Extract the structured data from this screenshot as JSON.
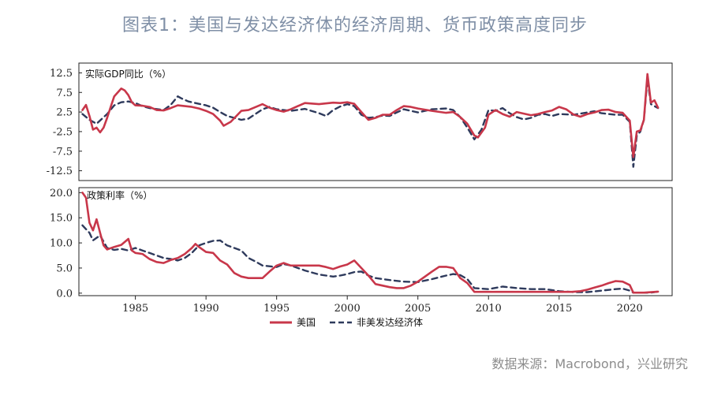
{
  "title": "图表1：美国与发达经济体的经济周期、货币政策高度同步",
  "source": "数据来源：Macrobond，兴业研究",
  "colors": {
    "us": "#c8374a",
    "adv": "#2e3a5c",
    "axis": "#222222"
  },
  "legend": {
    "us": "美国",
    "adv": "非美发达经济体"
  },
  "chart_data": [
    {
      "type": "line",
      "title": "实际GDP同比（%）",
      "xlim": [
        1981.0,
        2023.0
      ],
      "ylim": [
        -15,
        15
      ],
      "yticks": [
        12.5,
        7.5,
        2.5,
        -2.5,
        -7.5,
        -12.5
      ],
      "yticklabels": [
        "12.5",
        "7.5",
        "2.5",
        "-2.5",
        "-7.5",
        "-12.5"
      ],
      "grid": false,
      "series": [
        {
          "name": "美国",
          "x": [
            1981.25,
            1981.5,
            1981.75,
            1982.0,
            1982.25,
            1982.5,
            1982.75,
            1983.0,
            1983.25,
            1983.5,
            1984.0,
            1984.25,
            1984.5,
            1984.75,
            1985.0,
            1985.5,
            1986.0,
            1986.5,
            1987.0,
            1987.5,
            1988.0,
            1988.5,
            1989.0,
            1989.5,
            1990.0,
            1990.5,
            1991.0,
            1991.25,
            1991.75,
            1992.5,
            1993.0,
            1994.0,
            1994.5,
            1995.0,
            1995.5,
            1996.0,
            1996.5,
            1997.0,
            1998.0,
            1999.0,
            1999.5,
            2000.0,
            2000.5,
            2001.0,
            2001.5,
            2002.0,
            2002.5,
            2003.0,
            2003.5,
            2004.0,
            2004.5,
            2005.0,
            2006.0,
            2007.0,
            2007.5,
            2008.0,
            2008.5,
            2009.0,
            2009.25,
            2009.75,
            2010.0,
            2010.5,
            2011.0,
            2011.5,
            2012.0,
            2012.5,
            2013.0,
            2013.5,
            2014.0,
            2014.5,
            2015.0,
            2015.5,
            2016.0,
            2016.5,
            2017.0,
            2017.5,
            2018.0,
            2018.5,
            2019.0,
            2019.5,
            2020.0,
            2020.25,
            2020.5,
            2020.75,
            2021.0,
            2021.25,
            2021.5,
            2021.75,
            2022.0
          ],
          "values": [
            3.0,
            4.3,
            1.5,
            -2.0,
            -1.5,
            -2.7,
            -1.5,
            1.0,
            3.8,
            6.5,
            8.5,
            8.0,
            6.8,
            5.0,
            4.2,
            4.1,
            3.8,
            3.0,
            2.9,
            3.5,
            4.2,
            4.0,
            3.8,
            3.4,
            2.8,
            2.0,
            0.3,
            -1.0,
            0.0,
            2.8,
            3.0,
            4.5,
            3.6,
            3.0,
            2.6,
            3.2,
            4.0,
            4.8,
            4.5,
            4.9,
            4.8,
            5.0,
            4.6,
            2.5,
            0.5,
            1.0,
            1.8,
            1.8,
            3.0,
            4.0,
            3.8,
            3.4,
            2.8,
            2.3,
            2.5,
            1.2,
            -0.5,
            -3.5,
            -4.0,
            -1.5,
            1.8,
            3.0,
            2.0,
            1.3,
            2.5,
            2.1,
            1.7,
            2.0,
            2.5,
            2.9,
            3.8,
            3.2,
            1.9,
            1.3,
            2.0,
            2.4,
            3.0,
            3.1,
            2.5,
            2.3,
            0.3,
            -9.0,
            -2.5,
            -2.2,
            0.5,
            12.2,
            4.9,
            5.5,
            3.6
          ]
        },
        {
          "name": "非美发达经济体",
          "x": [
            1981.25,
            1981.75,
            1982.25,
            1983.0,
            1983.5,
            1984.0,
            1984.5,
            1985.0,
            1985.5,
            1986.0,
            1987.0,
            1987.5,
            1988.0,
            1988.25,
            1988.75,
            1989.5,
            1990.0,
            1990.5,
            1991.0,
            1991.5,
            1992.0,
            1992.5,
            1993.0,
            1993.5,
            1994.0,
            1994.5,
            1995.0,
            1995.5,
            1996.0,
            1997.0,
            1998.0,
            1998.5,
            1999.0,
            1999.5,
            2000.0,
            2000.5,
            2001.0,
            2001.5,
            2002.0,
            2002.5,
            2003.0,
            2003.5,
            2004.0,
            2004.5,
            2005.0,
            2006.0,
            2007.0,
            2007.5,
            2008.0,
            2008.5,
            2009.0,
            2009.5,
            2010.0,
            2010.5,
            2011.0,
            2011.5,
            2012.0,
            2012.5,
            2013.0,
            2013.5,
            2014.0,
            2014.5,
            2015.0,
            2016.0,
            2017.0,
            2017.5,
            2018.0,
            2018.5,
            2019.0,
            2019.5,
            2020.0,
            2020.25,
            2020.5,
            2020.75,
            2021.0,
            2021.25,
            2021.5,
            2021.75,
            2022.0
          ],
          "values": [
            2.0,
            0.5,
            -0.5,
            2.0,
            4.2,
            5.0,
            5.2,
            4.8,
            4.0,
            3.5,
            3.0,
            4.3,
            6.5,
            6.0,
            5.2,
            4.6,
            4.2,
            3.6,
            2.5,
            1.5,
            1.0,
            0.5,
            0.8,
            2.0,
            3.2,
            3.8,
            3.2,
            3.0,
            2.8,
            3.3,
            2.2,
            1.5,
            3.0,
            3.9,
            4.5,
            4.0,
            1.8,
            1.0,
            1.2,
            1.6,
            1.5,
            2.4,
            3.2,
            2.8,
            2.4,
            3.2,
            3.4,
            3.0,
            1.2,
            -1.5,
            -4.5,
            -2.0,
            3.0,
            2.8,
            3.5,
            2.2,
            1.2,
            0.6,
            1.0,
            1.8,
            2.0,
            1.5,
            2.0,
            1.8,
            2.4,
            2.7,
            2.2,
            2.0,
            1.8,
            1.8,
            0.0,
            -11.5,
            -3.5,
            -2.5,
            0.5,
            11.0,
            4.5,
            4.0,
            3.5
          ]
        }
      ]
    },
    {
      "type": "line",
      "title": "政策利率（%）",
      "xlim": [
        1981.0,
        2023.0
      ],
      "ylim": [
        -0.5,
        21.0
      ],
      "yticks": [
        20,
        15,
        10,
        5,
        0
      ],
      "yticklabels": [
        "20.0",
        "15.0",
        "10.0",
        "5.0",
        "0.0"
      ],
      "xticks": [
        1985,
        1990,
        1995,
        2000,
        2005,
        2010,
        2015,
        2020
      ],
      "xticklabels": [
        "1985",
        "1990",
        "1995",
        "2000",
        "2005",
        "2010",
        "2015",
        "2020"
      ],
      "grid": false,
      "series": [
        {
          "name": "美国",
          "x": [
            1981.25,
            1981.5,
            1981.75,
            1982.0,
            1982.25,
            1982.5,
            1982.75,
            1983.0,
            1983.5,
            1984.0,
            1984.5,
            1984.75,
            1985.0,
            1985.5,
            1986.0,
            1986.5,
            1987.0,
            1987.5,
            1988.0,
            1988.5,
            1989.0,
            1989.25,
            1989.5,
            1990.0,
            1990.5,
            1991.0,
            1991.5,
            1992.0,
            1992.5,
            1993.0,
            1994.0,
            1994.5,
            1995.0,
            1995.5,
            1996.0,
            1997.0,
            1998.0,
            1998.5,
            1999.0,
            1999.5,
            2000.0,
            2000.5,
            2001.0,
            2001.5,
            2002.0,
            2003.0,
            2003.5,
            2004.0,
            2004.5,
            2005.0,
            2005.5,
            2006.0,
            2006.5,
            2007.0,
            2007.5,
            2008.0,
            2008.5,
            2009.0,
            2015.9,
            2016.5,
            2017.0,
            2017.5,
            2018.0,
            2018.5,
            2019.0,
            2019.5,
            2020.0,
            2020.25,
            2021.0,
            2022.0
          ],
          "values": [
            20.0,
            19.0,
            14.0,
            12.5,
            14.7,
            12.0,
            9.5,
            8.7,
            9.2,
            9.6,
            10.8,
            8.5,
            8.0,
            7.8,
            6.8,
            6.2,
            6.0,
            6.6,
            7.0,
            7.8,
            9.0,
            9.8,
            9.2,
            8.2,
            8.0,
            6.5,
            5.7,
            4.0,
            3.3,
            3.0,
            3.0,
            4.3,
            5.5,
            6.0,
            5.5,
            5.5,
            5.5,
            5.2,
            4.8,
            5.3,
            5.7,
            6.5,
            5.0,
            3.5,
            1.8,
            1.2,
            1.0,
            1.0,
            1.5,
            2.3,
            3.3,
            4.3,
            5.25,
            5.25,
            5.0,
            3.0,
            2.0,
            0.25,
            0.25,
            0.4,
            0.7,
            1.1,
            1.5,
            2.0,
            2.4,
            2.3,
            1.6,
            0.1,
            0.1,
            0.3
          ]
        },
        {
          "name": "非美发达经济体",
          "x": [
            1981.25,
            1981.75,
            1982.0,
            1982.5,
            1983.0,
            1983.5,
            1984.0,
            1984.5,
            1985.0,
            1985.5,
            1986.0,
            1986.5,
            1987.0,
            1987.5,
            1988.0,
            1988.5,
            1989.0,
            1989.5,
            1990.0,
            1990.5,
            1991.0,
            1991.5,
            1992.0,
            1992.5,
            1993.0,
            1993.5,
            1994.0,
            1995.0,
            1995.5,
            1996.0,
            1997.0,
            1998.0,
            1998.5,
            1999.0,
            1999.5,
            2000.0,
            2000.5,
            2001.0,
            2001.5,
            2002.0,
            2003.0,
            2004.0,
            2005.0,
            2006.0,
            2007.0,
            2007.5,
            2008.0,
            2008.5,
            2009.0,
            2010.0,
            2011.0,
            2012.0,
            2013.0,
            2014.0,
            2015.0,
            2016.0,
            2017.0,
            2018.0,
            2019.0,
            2019.5,
            2020.0,
            2020.25,
            2021.0,
            2021.5,
            2022.0
          ],
          "values": [
            13.5,
            12.0,
            10.5,
            11.5,
            9.0,
            8.6,
            8.8,
            8.5,
            9.0,
            8.5,
            8.0,
            7.5,
            7.0,
            6.8,
            6.5,
            7.0,
            8.0,
            9.5,
            10.0,
            10.4,
            10.5,
            9.5,
            9.0,
            8.5,
            7.0,
            6.3,
            5.5,
            5.2,
            5.8,
            5.5,
            4.5,
            3.7,
            3.5,
            3.3,
            3.5,
            3.8,
            4.2,
            4.3,
            3.5,
            3.0,
            2.6,
            2.3,
            2.2,
            2.8,
            3.5,
            3.8,
            3.6,
            2.8,
            1.0,
            0.8,
            1.3,
            1.0,
            0.8,
            0.8,
            0.4,
            0.2,
            0.2,
            0.5,
            0.8,
            0.9,
            0.5,
            0.1,
            0.1,
            0.1,
            0.3
          ]
        }
      ]
    }
  ]
}
